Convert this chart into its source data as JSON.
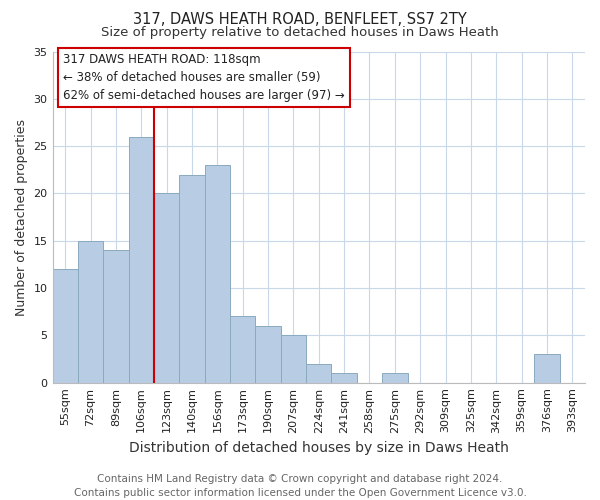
{
  "title": "317, DAWS HEATH ROAD, BENFLEET, SS7 2TY",
  "subtitle": "Size of property relative to detached houses in Daws Heath",
  "xlabel": "Distribution of detached houses by size in Daws Heath",
  "ylabel": "Number of detached properties",
  "categories": [
    "55sqm",
    "72sqm",
    "89sqm",
    "106sqm",
    "123sqm",
    "140sqm",
    "156sqm",
    "173sqm",
    "190sqm",
    "207sqm",
    "224sqm",
    "241sqm",
    "258sqm",
    "275sqm",
    "292sqm",
    "309sqm",
    "325sqm",
    "342sqm",
    "359sqm",
    "376sqm",
    "393sqm"
  ],
  "values": [
    12,
    15,
    14,
    26,
    20,
    22,
    23,
    7,
    6,
    5,
    2,
    1,
    0,
    1,
    0,
    0,
    0,
    0,
    0,
    3,
    0
  ],
  "bar_color": "#b8cce4",
  "bar_edge_color": "#8aaabf",
  "vline_color": "#cc0000",
  "vline_at_index": 3,
  "ylim": [
    0,
    35
  ],
  "yticks": [
    0,
    5,
    10,
    15,
    20,
    25,
    30,
    35
  ],
  "annotation_title": "317 DAWS HEATH ROAD: 118sqm",
  "annotation_line1": "← 38% of detached houses are smaller (59)",
  "annotation_line2": "62% of semi-detached houses are larger (97) →",
  "annotation_box_color": "#ffffff",
  "annotation_box_edge": "#cc0000",
  "footer_line1": "Contains HM Land Registry data © Crown copyright and database right 2024.",
  "footer_line2": "Contains public sector information licensed under the Open Government Licence v3.0.",
  "background_color": "#ffffff",
  "grid_color": "#c8d8e8",
  "title_fontsize": 10.5,
  "subtitle_fontsize": 9.5,
  "xlabel_fontsize": 10,
  "ylabel_fontsize": 9,
  "tick_fontsize": 8,
  "annotation_fontsize": 8.5,
  "footer_fontsize": 7.5
}
